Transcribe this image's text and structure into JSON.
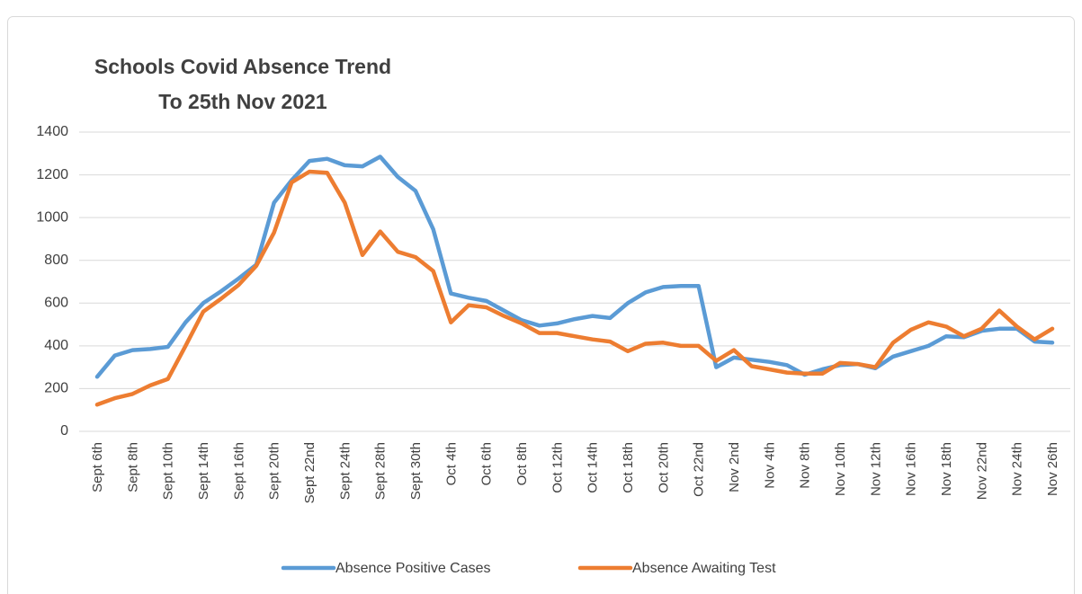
{
  "chart_data": {
    "type": "line",
    "title": "Schools Covid  Absence Trend",
    "subtitle": "To 25th Nov 2021",
    "categories": [
      "Sept 6th",
      null,
      "Sept 8th",
      null,
      "Sept 10th",
      null,
      "Sept 14th",
      null,
      "Sept 16th",
      null,
      "Sept 20th",
      null,
      "Sept 22nd",
      null,
      "Sept 24th",
      null,
      "Sept 28th",
      null,
      "Sept 30th",
      null,
      "Oct 4th",
      null,
      "Oct 6th",
      null,
      "Oct 8th",
      null,
      "Oct 12th",
      null,
      "Oct 14th",
      null,
      "Oct 18th",
      null,
      "Oct 20th",
      null,
      "Oct 22nd",
      null,
      "Nov 2nd",
      null,
      "Nov 4th",
      null,
      "Nov 8th",
      null,
      "Nov 10th",
      null,
      "Nov 12th",
      null,
      "Nov 16th",
      null,
      "Nov 18th",
      null,
      "Nov 22nd",
      null,
      "Nov 24th",
      null,
      "Nov 26th"
    ],
    "series": [
      {
        "name": "Absence Positive Cases",
        "color": "#5b9bd5",
        "values": [
          255,
          355,
          380,
          385,
          395,
          510,
          600,
          655,
          715,
          780,
          1070,
          1175,
          1265,
          1275,
          1245,
          1240,
          1285,
          1190,
          1125,
          945,
          645,
          625,
          610,
          565,
          520,
          495,
          505,
          525,
          540,
          530,
          600,
          650,
          675,
          680,
          680,
          300,
          345,
          335,
          325,
          310,
          265,
          290,
          310,
          315,
          295,
          350,
          375,
          400,
          445,
          440,
          470,
          480,
          480,
          420,
          415
        ]
      },
      {
        "name": "Absence Awaiting Test",
        "color": "#ed7d31",
        "values": [
          125,
          155,
          175,
          215,
          245,
          400,
          560,
          620,
          685,
          775,
          930,
          1165,
          1215,
          1210,
          1070,
          825,
          935,
          840,
          815,
          750,
          510,
          590,
          580,
          540,
          505,
          460,
          460,
          445,
          430,
          420,
          375,
          410,
          415,
          400,
          400,
          330,
          380,
          305,
          290,
          275,
          270,
          270,
          320,
          315,
          300,
          415,
          475,
          510,
          490,
          445,
          480,
          565,
          490,
          430,
          480
        ]
      }
    ],
    "ylim": [
      0,
      1400
    ],
    "yticks": [
      0,
      200,
      400,
      600,
      800,
      1000,
      1200,
      1400
    ],
    "grid": true,
    "legend": "bottom"
  }
}
